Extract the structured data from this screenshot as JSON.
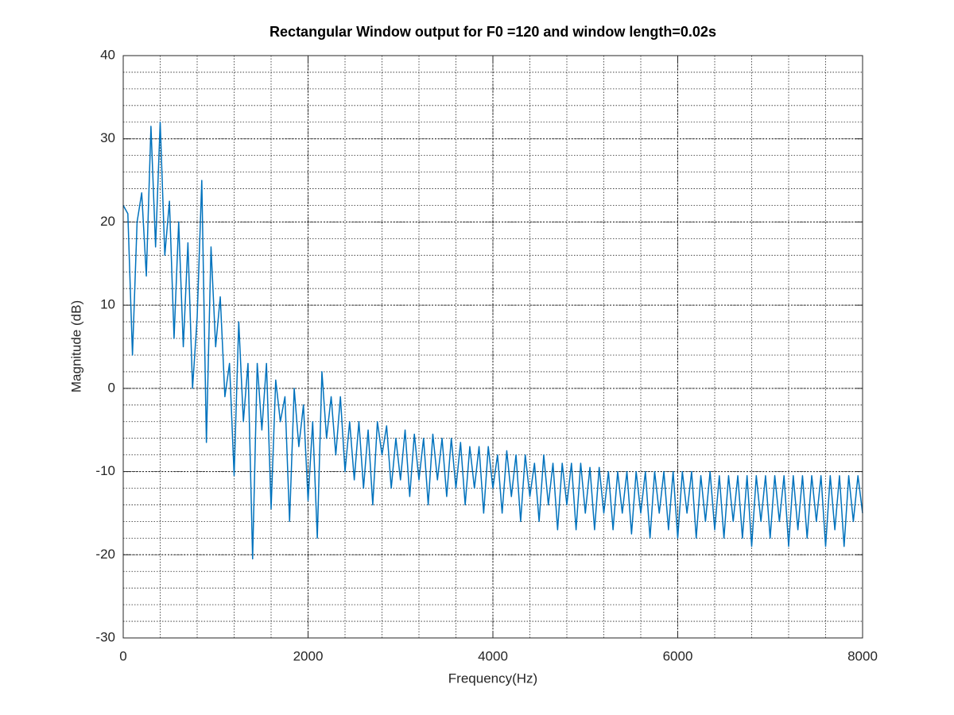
{
  "chart_data": {
    "type": "line",
    "title": "Rectangular Window output for F0 =120 and window length=0.02s",
    "x_label": "Frequency(Hz)",
    "y_label": "Magnitude (dB)",
    "xlim": [
      0,
      8000
    ],
    "ylim": [
      -30,
      40
    ],
    "xticks": [
      0,
      2000,
      4000,
      6000,
      8000
    ],
    "yticks": [
      -30,
      -20,
      -10,
      0,
      10,
      20,
      30,
      40
    ],
    "minor_xticks": [
      0,
      400,
      800,
      1200,
      1600,
      2000,
      2400,
      2800,
      3200,
      3600,
      4000,
      4400,
      4800,
      5200,
      5600,
      6000,
      6400,
      6800,
      7200,
      7600,
      8000
    ],
    "minor_yticks": [
      -30,
      -28,
      -26,
      -24,
      -22,
      -20,
      -18,
      -16,
      -14,
      -12,
      -10,
      -8,
      -6,
      -4,
      -2,
      0,
      2,
      4,
      6,
      8,
      10,
      12,
      14,
      16,
      18,
      20,
      22,
      24,
      26,
      28,
      30,
      32,
      34,
      36,
      38,
      40
    ],
    "grid": true,
    "x": [
      0,
      50,
      100,
      150,
      200,
      250,
      300,
      350,
      400,
      450,
      500,
      550,
      600,
      650,
      700,
      750,
      800,
      850,
      900,
      950,
      1000,
      1050,
      1100,
      1150,
      1200,
      1250,
      1300,
      1350,
      1400,
      1450,
      1500,
      1550,
      1600,
      1650,
      1700,
      1750,
      1800,
      1850,
      1900,
      1950,
      2000,
      2050,
      2100,
      2150,
      2200,
      2250,
      2300,
      2350,
      2400,
      2450,
      2500,
      2550,
      2600,
      2650,
      2700,
      2750,
      2800,
      2850,
      2900,
      2950,
      3000,
      3050,
      3100,
      3150,
      3200,
      3250,
      3300,
      3350,
      3400,
      3450,
      3500,
      3550,
      3600,
      3650,
      3700,
      3750,
      3800,
      3850,
      3900,
      3950,
      4000,
      4050,
      4100,
      4150,
      4200,
      4250,
      4300,
      4350,
      4400,
      4450,
      4500,
      4550,
      4600,
      4650,
      4700,
      4750,
      4800,
      4850,
      4900,
      4950,
      5000,
      5050,
      5100,
      5150,
      5200,
      5250,
      5300,
      5350,
      5400,
      5450,
      5500,
      5550,
      5600,
      5650,
      5700,
      5750,
      5800,
      5850,
      5900,
      5950,
      6000,
      6050,
      6100,
      6150,
      6200,
      6250,
      6300,
      6350,
      6400,
      6450,
      6500,
      6550,
      6600,
      6650,
      6700,
      6750,
      6800,
      6850,
      6900,
      6950,
      7000,
      7050,
      7100,
      7150,
      7200,
      7250,
      7300,
      7350,
      7400,
      7450,
      7500,
      7550,
      7600,
      7650,
      7700,
      7750,
      7800,
      7850,
      7900,
      7950,
      8000
    ],
    "series": [
      {
        "color": "#0072bd",
        "values": [
          22,
          21,
          4,
          20,
          23.5,
          13.5,
          31.5,
          17,
          32,
          16,
          22.5,
          6,
          20,
          5,
          17.5,
          0,
          8.5,
          25,
          -6.5,
          17,
          5,
          11,
          -1,
          3,
          -10.5,
          8,
          -4,
          3,
          -20.5,
          3,
          -5,
          3,
          -14.5,
          1,
          -4,
          -1,
          -16,
          0,
          -7,
          -2,
          -13.5,
          -4,
          -18,
          2,
          -6,
          -1,
          -8,
          -1,
          -10,
          -4,
          -11,
          -4,
          -12,
          -5,
          -14,
          -4,
          -8,
          -4.5,
          -12,
          -6,
          -11,
          -5,
          -13,
          -5.5,
          -11,
          -6,
          -14,
          -5.5,
          -11,
          -6,
          -13,
          -6,
          -12,
          -6.5,
          -14,
          -7,
          -12,
          -7,
          -15,
          -7,
          -12,
          -8,
          -15,
          -7.5,
          -13,
          -8,
          -16,
          -8,
          -13,
          -9,
          -16,
          -8,
          -14,
          -9,
          -17,
          -9,
          -14,
          -9,
          -17,
          -9,
          -15,
          -9.5,
          -17,
          -9.5,
          -15,
          -10,
          -17,
          -10,
          -15,
          -10,
          -17.5,
          -10,
          -15,
          -10,
          -18,
          -10,
          -15,
          -10,
          -17,
          -10,
          -18,
          -10,
          -15,
          -10,
          -18,
          -10.5,
          -16,
          -10,
          -17,
          -10.5,
          -18,
          -10.5,
          -16,
          -10.5,
          -18,
          -10.5,
          -19,
          -10.5,
          -16,
          -10.5,
          -18,
          -10.5,
          -16,
          -10.5,
          -19,
          -10.5,
          -17,
          -10.5,
          -18,
          -10.5,
          -16,
          -10.5,
          -19,
          -10.5,
          -17,
          -10.5,
          -19,
          -10.5,
          -16,
          -10.5,
          -15
        ]
      }
    ]
  }
}
